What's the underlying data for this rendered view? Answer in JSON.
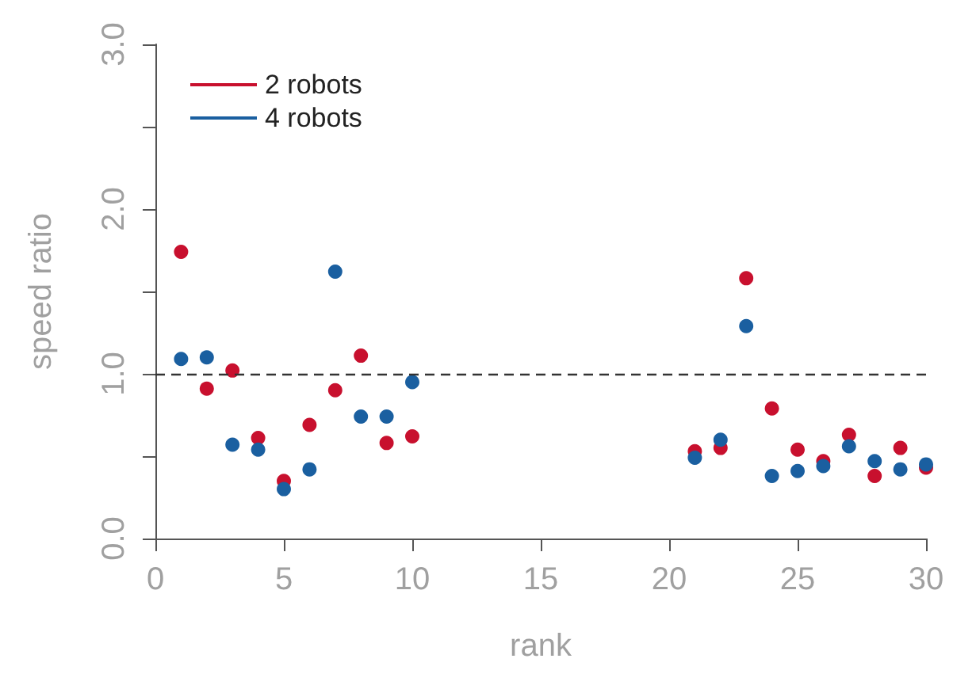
{
  "chart_data": {
    "type": "scatter",
    "xlabel": "rank",
    "ylabel": "speed ratio",
    "x": [
      1,
      2,
      3,
      4,
      5,
      6,
      7,
      8,
      9,
      10,
      21,
      22,
      23,
      24,
      25,
      26,
      27,
      28,
      29,
      30
    ],
    "series": [
      {
        "name": "2 robots",
        "color": "#c8102e",
        "values": [
          1.74,
          0.91,
          1.02,
          0.61,
          0.35,
          0.69,
          0.9,
          1.11,
          0.58,
          0.62,
          0.53,
          0.55,
          1.58,
          0.79,
          0.54,
          0.47,
          0.63,
          0.38,
          0.55,
          0.43
        ]
      },
      {
        "name": "4 robots",
        "color": "#1a5fa0",
        "values": [
          1.09,
          1.1,
          0.57,
          0.54,
          0.3,
          0.42,
          1.62,
          0.74,
          0.74,
          0.95,
          0.49,
          0.6,
          1.29,
          0.38,
          0.41,
          0.44,
          0.56,
          0.47,
          0.42,
          0.45
        ]
      }
    ],
    "xlim": [
      0,
      30
    ],
    "xticks": [
      0,
      5,
      10,
      15,
      20,
      25,
      30
    ],
    "ylim": [
      0,
      3
    ],
    "yticks": [
      {
        "value": 0,
        "label": "0.0"
      },
      {
        "value": 0.5,
        "label": null
      },
      {
        "value": 1,
        "label": "1.0"
      },
      {
        "value": 1.5,
        "label": null
      },
      {
        "value": 2,
        "label": "2.0"
      },
      {
        "value": 2.5,
        "label": null
      },
      {
        "value": 3,
        "label": "3.0"
      }
    ],
    "ref_lines": [
      {
        "axis": "y",
        "value": 1,
        "label": null,
        "color": "#333333",
        "line_style": "dashed"
      }
    ],
    "grid": false,
    "legend": "top left",
    "marker": "circle"
  }
}
